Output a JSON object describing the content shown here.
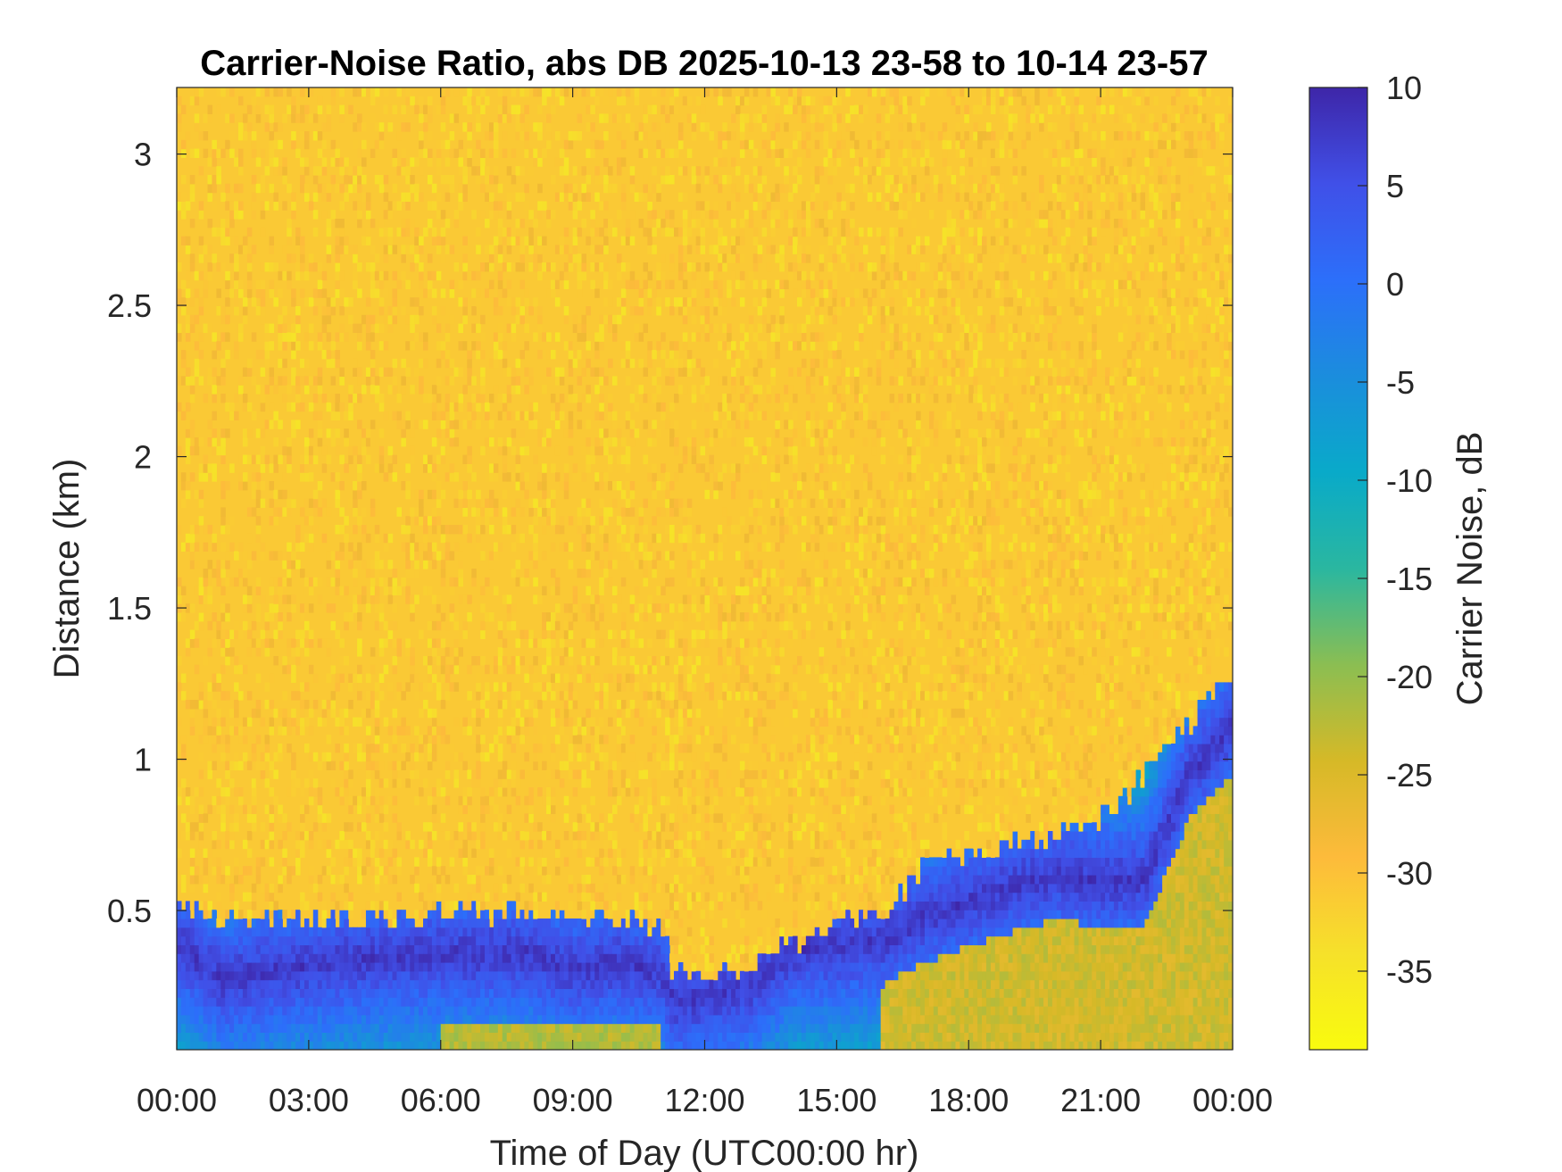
{
  "chart_data": {
    "type": "heatmap",
    "title": "Carrier-Noise Ratio, abs DB 2025-10-13 23-58 to 10-14 23-57",
    "xlabel": "Time of Day (UTC00:00 hr)",
    "ylabel": "Distance (km)",
    "x_tick_labels": [
      "00:00",
      "03:00",
      "06:00",
      "09:00",
      "12:00",
      "15:00",
      "18:00",
      "21:00",
      "00:00"
    ],
    "x_range_hours": [
      0,
      24
    ],
    "y_tick_labels": [
      "0.5",
      "1",
      "1.5",
      "2",
      "2.5",
      "3"
    ],
    "y_ticks_km": [
      0.5,
      1,
      1.5,
      2,
      2.5,
      3
    ],
    "y_range_km": [
      0.04,
      3.22
    ],
    "colorbar": {
      "label": "Carrier Noise, dB",
      "tick_labels": [
        "10",
        "5",
        "0",
        "-5",
        "-10",
        "-15",
        "-20",
        "-25",
        "-30",
        "-35"
      ],
      "ticks": [
        10,
        5,
        0,
        -5,
        -10,
        -15,
        -20,
        -25,
        -30,
        -35
      ],
      "range": [
        -39,
        10
      ],
      "colormap": "parula"
    },
    "background_level_db": -31,
    "layer_top_km": [
      [
        0,
        0.52
      ],
      [
        1,
        0.48
      ],
      [
        2,
        0.47
      ],
      [
        3,
        0.47
      ],
      [
        4,
        0.48
      ],
      [
        5,
        0.47
      ],
      [
        6,
        0.49
      ],
      [
        7,
        0.49
      ],
      [
        8,
        0.5
      ],
      [
        9,
        0.48
      ],
      [
        10,
        0.47
      ],
      [
        11,
        0.45
      ],
      [
        11.3,
        0.28
      ],
      [
        12,
        0.28
      ],
      [
        13,
        0.3
      ],
      [
        14,
        0.4
      ],
      [
        15,
        0.45
      ],
      [
        16,
        0.48
      ],
      [
        17,
        0.65
      ],
      [
        18,
        0.7
      ],
      [
        19,
        0.72
      ],
      [
        20,
        0.75
      ],
      [
        21,
        0.8
      ],
      [
        22,
        0.95
      ],
      [
        23,
        1.1
      ],
      [
        24,
        1.3
      ]
    ],
    "peak_height_km": [
      [
        0,
        0.4
      ],
      [
        1,
        0.27
      ],
      [
        2,
        0.3
      ],
      [
        3,
        0.32
      ],
      [
        4,
        0.34
      ],
      [
        5,
        0.35
      ],
      [
        6,
        0.36
      ],
      [
        7,
        0.36
      ],
      [
        8,
        0.36
      ],
      [
        9,
        0.3
      ],
      [
        10,
        0.33
      ],
      [
        11,
        0.3
      ],
      [
        11.3,
        0.2
      ],
      [
        12,
        0.22
      ],
      [
        13,
        0.25
      ],
      [
        14,
        0.37
      ],
      [
        15,
        0.38
      ],
      [
        16,
        0.4
      ],
      [
        17,
        0.48
      ],
      [
        18,
        0.53
      ],
      [
        19,
        0.58
      ],
      [
        20,
        0.62
      ],
      [
        21,
        0.6
      ],
      [
        22,
        0.6
      ],
      [
        23,
        0.95
      ],
      [
        24,
        1.1
      ]
    ]
  }
}
